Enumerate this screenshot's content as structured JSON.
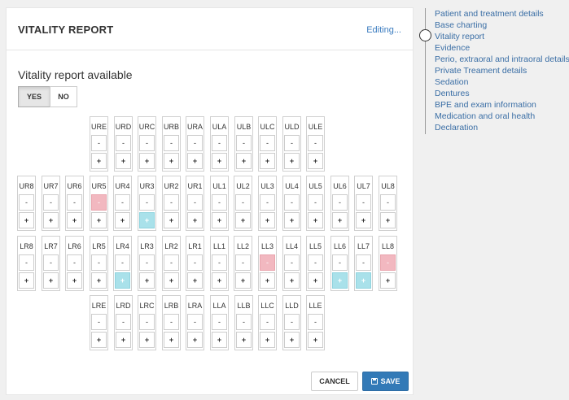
{
  "card": {
    "title": "VITALITY REPORT",
    "status": "Editing...",
    "question": "Vitality report available",
    "yes_label": "YES",
    "no_label": "NO",
    "selected": "YES",
    "cancel_label": "CANCEL",
    "save_label": "SAVE"
  },
  "colors": {
    "negative": "#f2b8c0",
    "positive": "#a9e1ea",
    "primary": "#337ab7"
  },
  "teeth": {
    "upper_primary": [
      "URE",
      "URD",
      "URC",
      "URB",
      "URA",
      "ULA",
      "ULB",
      "ULC",
      "ULD",
      "ULE"
    ],
    "upper_permanent": [
      "UR8",
      "UR7",
      "UR6",
      "UR5",
      "UR4",
      "UR3",
      "UR2",
      "UR1",
      "UL1",
      "UL2",
      "UL3",
      "UL4",
      "UL5",
      "UL6",
      "UL7",
      "UL8"
    ],
    "lower_permanent": [
      "LR8",
      "LR7",
      "LR6",
      "LR5",
      "LR4",
      "LR3",
      "LR2",
      "LR1",
      "LL1",
      "LL2",
      "LL3",
      "LL4",
      "LL5",
      "LL6",
      "LL7",
      "LL8"
    ],
    "lower_primary": [
      "LRE",
      "LRD",
      "LRC",
      "LRB",
      "LRA",
      "LLA",
      "LLB",
      "LLC",
      "LLD",
      "LLE"
    ],
    "minus_symbol": "-",
    "plus_symbol": "+",
    "negative_marked": [
      "UR5",
      "LL3",
      "LL8"
    ],
    "positive_marked": [
      "UR3",
      "LR4",
      "LL6",
      "LL7"
    ]
  },
  "nav": {
    "items": [
      "Patient and treatment details",
      "Base charting",
      "Vitality report",
      "Evidence",
      "Perio, extraoral and intraoral details",
      "Private Treament details",
      "Sedation",
      "Dentures",
      "BPE and exam information",
      "Medication and oral health",
      "Declaration"
    ],
    "active": "Vitality report"
  }
}
